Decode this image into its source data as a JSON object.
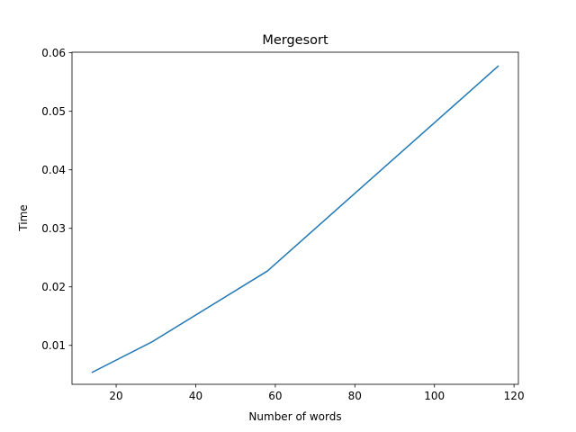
{
  "chart_data": {
    "type": "line",
    "title": "Mergesort",
    "xlabel": "Number of words",
    "ylabel": "Time",
    "xlim": [
      8.9,
      121.1
    ],
    "ylim": [
      0.00335,
      0.0601
    ],
    "xticks": [
      20,
      40,
      60,
      80,
      100,
      120
    ],
    "yticks": [
      0.01,
      0.02,
      0.03,
      0.04,
      0.05,
      0.06
    ],
    "xtick_labels": [
      "20",
      "40",
      "60",
      "80",
      "100",
      "120"
    ],
    "ytick_labels": [
      "0.01",
      "0.02",
      "0.03",
      "0.04",
      "0.05",
      "0.06"
    ],
    "grid": false,
    "series": [
      {
        "color": "#1f77b4",
        "x": [
          14,
          29,
          58,
          116
        ],
        "y": [
          0.0054,
          0.0106,
          0.0227,
          0.0577
        ]
      }
    ]
  }
}
